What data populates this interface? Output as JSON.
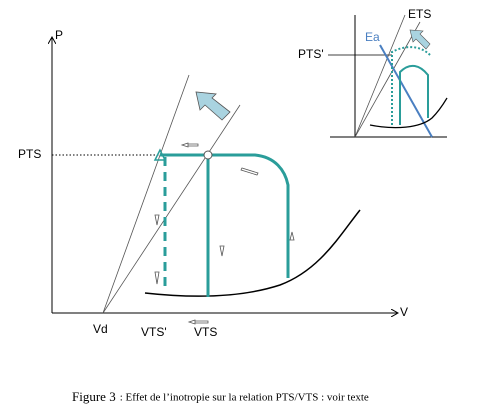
{
  "main": {
    "y_axis": "P",
    "x_axis": "V",
    "pts": "PTS",
    "vd": "Vd",
    "vts_prime": "VTS'",
    "vts": "VTS"
  },
  "inset": {
    "ets": "ETS",
    "ea": "Ea",
    "pts_prime": "PTS'"
  },
  "caption": {
    "figure": "Figure 3",
    "text": ": Effet de l’inotropie sur la relation PTS/VTS : voir texte"
  }
}
